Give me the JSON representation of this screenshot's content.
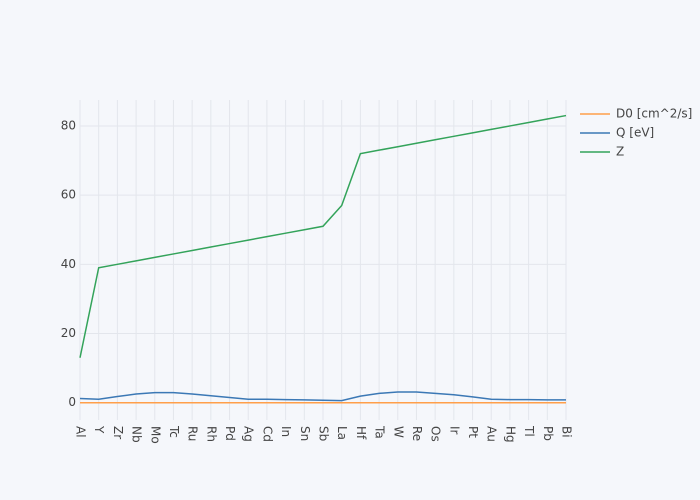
{
  "chart_data": {
    "type": "line",
    "categories": [
      "Al",
      "Y",
      "Zr",
      "Nb",
      "Mo",
      "Tc",
      "Ru",
      "Rh",
      "Pd",
      "Ag",
      "Cd",
      "In",
      "Sn",
      "Sb",
      "La",
      "Hf",
      "Ta",
      "W",
      "Re",
      "Os",
      "Ir",
      "Pt",
      "Au",
      "Hg",
      "Tl",
      "Pb",
      "Bi"
    ],
    "series": [
      {
        "name": "D0 [cm^2/s]",
        "color": "#ff9f4a",
        "values": [
          0,
          0,
          0,
          0,
          0,
          0,
          0,
          0,
          0,
          0,
          0,
          0,
          0,
          0,
          0,
          0,
          0,
          0,
          0,
          0,
          0,
          0,
          0,
          0,
          0,
          0,
          0
        ]
      },
      {
        "name": "Q [eV]",
        "color": "#3b78b5",
        "values": [
          1.2,
          1.0,
          1.8,
          2.5,
          2.9,
          2.9,
          2.5,
          2.0,
          1.5,
          1.0,
          1.0,
          0.9,
          0.8,
          0.7,
          0.6,
          1.9,
          2.7,
          3.1,
          3.1,
          2.7,
          2.3,
          1.7,
          1.0,
          0.9,
          0.9,
          0.8,
          0.8
        ]
      },
      {
        "name": "Z",
        "color": "#33a35a",
        "values": [
          13,
          39,
          40,
          41,
          42,
          43,
          44,
          45,
          46,
          47,
          48,
          49,
          50,
          51,
          57,
          72,
          73,
          74,
          75,
          76,
          77,
          78,
          79,
          80,
          81,
          82,
          83
        ]
      }
    ],
    "ylim": [
      -5,
      87.5
    ],
    "yticks": [
      0,
      20,
      40,
      60,
      80
    ],
    "grid": true,
    "legend": "top-right"
  }
}
